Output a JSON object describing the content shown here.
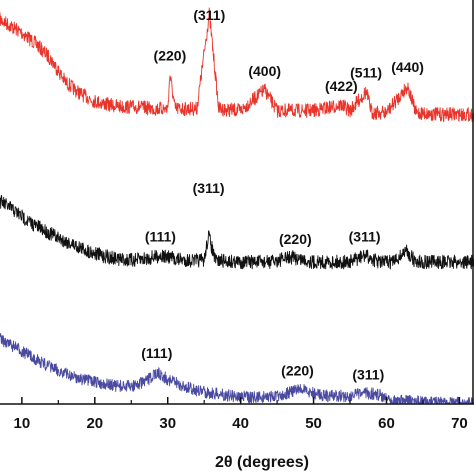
{
  "chart_data": {
    "type": "line",
    "title": "",
    "xlabel": "2θ (degrees)",
    "ylabel": "",
    "xlim": [
      7,
      72
    ],
    "x_ticks": [
      10,
      20,
      30,
      40,
      50,
      60,
      70
    ],
    "grid": false,
    "legend": "none",
    "series": [
      {
        "color": "#e8342a",
        "x": [
          7,
          10,
          12,
          14,
          16,
          18,
          20,
          22,
          24,
          26,
          28,
          30,
          30.3,
          31,
          34,
          35.7,
          37,
          40,
          43.3,
          45,
          48,
          50,
          53.8,
          55,
          57.2,
          58,
          60,
          62.9,
          64,
          67,
          70,
          72
        ],
        "y": [
          0.95,
          0.88,
          0.82,
          0.74,
          0.62,
          0.56,
          0.52,
          0.5,
          0.49,
          0.49,
          0.48,
          0.48,
          0.66,
          0.48,
          0.48,
          0.98,
          0.48,
          0.47,
          0.58,
          0.47,
          0.47,
          0.47,
          0.5,
          0.47,
          0.57,
          0.46,
          0.46,
          0.6,
          0.46,
          0.45,
          0.45,
          0.45
        ],
        "peak_labels": [
          {
            "x": 30.3,
            "text": "(220)"
          },
          {
            "x": 35.7,
            "text": "(311)"
          },
          {
            "x": 43.3,
            "text": "(400)"
          },
          {
            "x": 53.8,
            "text": "(422)"
          },
          {
            "x": 57.2,
            "text": "(511)"
          },
          {
            "x": 62.9,
            "text": "(440)"
          }
        ]
      },
      {
        "color": "#111111",
        "x": [
          7,
          9,
          11,
          13,
          15,
          17,
          19,
          21,
          23,
          25,
          27,
          29,
          31,
          33,
          35,
          35.6,
          36.5,
          40,
          44,
          47,
          50,
          53,
          55,
          57,
          59,
          61,
          62.7,
          64,
          67,
          70,
          72
        ],
        "y": [
          0.68,
          0.62,
          0.55,
          0.5,
          0.45,
          0.41,
          0.37,
          0.34,
          0.32,
          0.31,
          0.32,
          0.34,
          0.32,
          0.31,
          0.31,
          0.47,
          0.31,
          0.3,
          0.3,
          0.33,
          0.3,
          0.3,
          0.3,
          0.34,
          0.3,
          0.3,
          0.37,
          0.3,
          0.3,
          0.3,
          0.3
        ],
        "peak_labels": [
          {
            "x": 29,
            "text": "(111)"
          },
          {
            "x": 35.6,
            "text": "(311)"
          },
          {
            "x": 47.5,
            "text": "(220)"
          },
          {
            "x": 57,
            "text": "(311)"
          }
        ]
      },
      {
        "color": "#4a4aa0",
        "x": [
          7,
          9,
          11,
          13,
          15,
          17,
          19,
          21,
          23,
          25,
          27,
          28.5,
          30,
          32,
          34,
          36,
          39,
          42,
          45,
          47,
          48,
          50,
          52,
          55,
          57,
          59,
          61,
          64,
          67,
          70,
          72
        ],
        "y": [
          0.46,
          0.4,
          0.34,
          0.28,
          0.23,
          0.19,
          0.16,
          0.14,
          0.12,
          0.12,
          0.15,
          0.22,
          0.17,
          0.12,
          0.09,
          0.07,
          0.05,
          0.04,
          0.05,
          0.08,
          0.1,
          0.07,
          0.05,
          0.05,
          0.07,
          0.06,
          0.02,
          0.01,
          0.0,
          0.0,
          0.0
        ],
        "peak_labels": [
          {
            "x": 28.5,
            "text": "(111)"
          },
          {
            "x": 47.8,
            "text": "(220)"
          },
          {
            "x": 57.5,
            "text": "(311)"
          }
        ]
      }
    ]
  }
}
